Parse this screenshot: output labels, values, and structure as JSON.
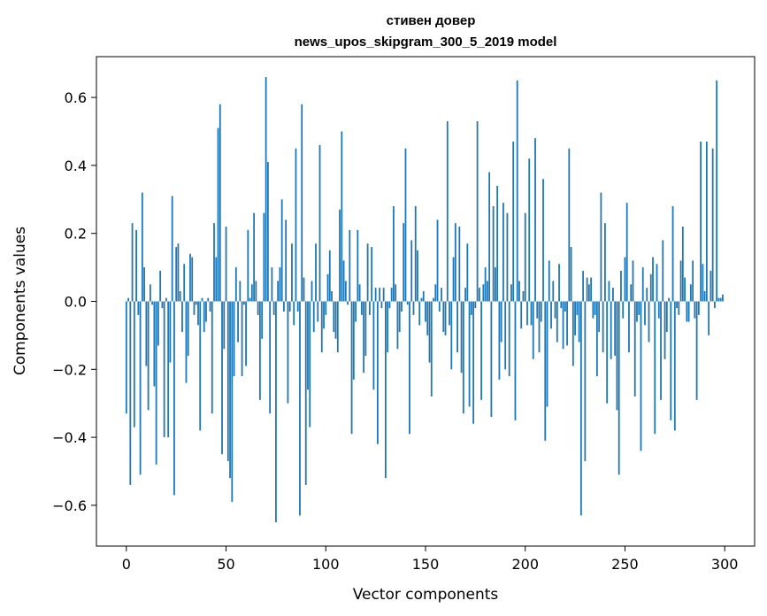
{
  "chart_data": {
    "type": "bar",
    "title": "стивен довер",
    "subtitle": "news_upos_skipgram_300_5_2019 model",
    "xlabel": "Vector components",
    "ylabel": "Components values",
    "xlim": [
      -15,
      315
    ],
    "ylim": [
      -0.72,
      0.72
    ],
    "xticks": [
      0,
      50,
      100,
      150,
      200,
      250,
      300
    ],
    "yticks": [
      -0.6,
      -0.4,
      -0.2,
      0.0,
      0.2,
      0.4,
      0.6
    ],
    "ytick_labels": [
      "−0.6",
      "−0.4",
      "−0.2",
      "0.0",
      "0.2",
      "0.4",
      "0.6"
    ],
    "bar_color": "#1f77b4",
    "grid": false,
    "legend": "none",
    "values": [
      -0.33,
      0.01,
      -0.54,
      0.23,
      -0.37,
      0.21,
      -0.04,
      -0.51,
      0.32,
      0.1,
      -0.19,
      -0.32,
      0.05,
      -0.01,
      -0.25,
      -0.48,
      -0.13,
      0.09,
      -0.02,
      -0.4,
      0.01,
      -0.4,
      -0.18,
      0.31,
      -0.57,
      0.16,
      0.17,
      0.03,
      -0.09,
      0.11,
      -0.24,
      -0.16,
      0.14,
      0.13,
      -0.04,
      -0.01,
      -0.07,
      -0.38,
      0.01,
      -0.09,
      -0.06,
      0.01,
      -0.03,
      -0.33,
      0.23,
      0.13,
      0.51,
      0.58,
      -0.45,
      -0.14,
      0.22,
      -0.47,
      -0.52,
      -0.59,
      -0.22,
      0.1,
      -0.12,
      0.06,
      -0.22,
      -0.01,
      -0.19,
      0.21,
      0.01,
      0.05,
      0.26,
      0.06,
      -0.04,
      -0.29,
      -0.11,
      0.26,
      0.66,
      0.41,
      -0.33,
      0.1,
      -0.04,
      -0.65,
      0.06,
      0.1,
      0.3,
      -0.03,
      0.24,
      -0.3,
      -0.03,
      0.17,
      -0.07,
      0.45,
      -0.03,
      -0.63,
      0.58,
      0.07,
      -0.54,
      -0.26,
      -0.37,
      0.06,
      -0.09,
      0.17,
      -0.06,
      0.46,
      -0.15,
      -0.08,
      -0.04,
      0.08,
      0.15,
      0.03,
      -0.09,
      -0.11,
      -0.15,
      0.27,
      0.5,
      0.12,
      0.06,
      -0.01,
      0.21,
      -0.39,
      -0.23,
      -0.06,
      0.21,
      0.05,
      -0.04,
      -0.21,
      -0.16,
      0.17,
      -0.04,
      0.16,
      -0.26,
      0.04,
      -0.42,
      0.04,
      -0.02,
      0.04,
      -0.52,
      -0.15,
      -0.02,
      0.04,
      0.28,
      0.05,
      -0.14,
      -0.09,
      -0.03,
      0.23,
      0.45,
      -0.01,
      -0.39,
      0.18,
      -0.04,
      0.28,
      0.15,
      -0.07,
      0.01,
      0.03,
      -0.06,
      -0.1,
      -0.18,
      -0.28,
      0.01,
      0.05,
      0.24,
      -0.03,
      0.04,
      -0.09,
      -0.1,
      0.53,
      -0.07,
      -0.2,
      0.13,
      0.23,
      -0.15,
      0.22,
      -0.21,
      -0.33,
      0.04,
      0.17,
      -0.31,
      -0.04,
      -0.36,
      -0.02,
      0.53,
      0.04,
      -0.29,
      0.05,
      0.1,
      0.06,
      0.38,
      -0.34,
      0.28,
      0.1,
      0.34,
      -0.23,
      -0.12,
      0.29,
      -0.2,
      0.26,
      -0.22,
      0.05,
      0.47,
      -0.35,
      0.65,
      0.06,
      -0.08,
      0.03,
      0.26,
      -0.07,
      0.42,
      -0.07,
      -0.17,
      0.48,
      -0.05,
      -0.15,
      -0.06,
      0.36,
      -0.41,
      -0.31,
      0.12,
      -0.08,
      0.06,
      -0.05,
      -0.12,
      0.11,
      -0.02,
      -0.14,
      -0.03,
      -0.13,
      0.45,
      0.16,
      -0.19,
      -0.1,
      -0.04,
      -0.12,
      -0.63,
      0.09,
      -0.47,
      0.07,
      0.05,
      0.07,
      -0.05,
      -0.04,
      -0.22,
      -0.09,
      0.32,
      -0.15,
      0.23,
      -0.3,
      0.06,
      -0.17,
      0.04,
      -0.16,
      -0.32,
      -0.51,
      0.09,
      -0.05,
      0.13,
      0.29,
      -0.15,
      0.05,
      0.12,
      -0.28,
      -0.06,
      -0.04,
      -0.44,
      0.1,
      -0.07,
      0.04,
      -0.12,
      0.08,
      0.13,
      -0.39,
      0.11,
      -0.05,
      -0.29,
      0.18,
      -0.17,
      -0.09,
      0.01,
      -0.35,
      0.28,
      -0.38,
      -0.02,
      -0.04,
      0.12,
      0.22,
      0.07,
      -0.06,
      -0.06,
      0.05,
      0.12,
      -0.05,
      -0.29,
      -0.04,
      0.47,
      0.11,
      0.03,
      0.47,
      -0.1,
      0.09,
      0.45,
      -0.02,
      0.65,
      0.01,
      0.01,
      0.02
    ]
  }
}
